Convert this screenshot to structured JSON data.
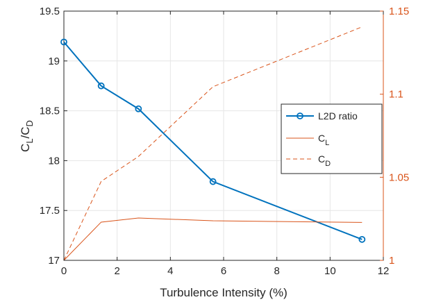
{
  "chart_data": {
    "type": "line",
    "xlabel": "Turbulence Intensity (%)",
    "ylabel_left": {
      "main": "C",
      "sub1": "L",
      "mid": "/C",
      "sub2": "D"
    },
    "xlim": [
      0,
      12
    ],
    "x_ticks": [
      0,
      2,
      4,
      6,
      8,
      10,
      12
    ],
    "ylim_left": [
      17,
      19.5
    ],
    "y_ticks_left": [
      17,
      17.5,
      18,
      18.5,
      19,
      19.5
    ],
    "y_ticks_left_labels": [
      "17",
      "17.5",
      "18",
      "18.5",
      "19",
      "19.5"
    ],
    "ylim_right": [
      1,
      1.15
    ],
    "y_ticks_right": [
      1,
      1.05,
      1.1,
      1.15
    ],
    "y_ticks_right_labels": [
      "1",
      "1.05",
      "1.1",
      "1.15"
    ],
    "grid": true,
    "legend_position": "middle-right",
    "series": [
      {
        "name": "L2D ratio",
        "legend_main": "L2D ratio",
        "legend_sub": "",
        "axis": "left",
        "color": "#0072BD",
        "style": "solid-marker-o",
        "x": [
          0,
          1.4,
          2.8,
          5.6,
          11.2
        ],
        "y": [
          19.19,
          18.75,
          18.52,
          17.79,
          17.21
        ]
      },
      {
        "name": "C_L",
        "legend_main": "C",
        "legend_sub": "L",
        "axis": "right",
        "color": "#D95319",
        "style": "solid",
        "x": [
          0,
          1.4,
          2.8,
          5.6,
          11.2
        ],
        "y": [
          1.0,
          1.023,
          1.0255,
          1.0238,
          1.0228
        ]
      },
      {
        "name": "C_D",
        "legend_main": "C",
        "legend_sub": "D",
        "axis": "right",
        "color": "#D95319",
        "style": "dashed",
        "x": [
          0,
          1.4,
          2.8,
          5.6,
          11.2
        ],
        "y": [
          1.0,
          1.0475,
          1.0625,
          1.1045,
          1.1405
        ]
      }
    ]
  }
}
